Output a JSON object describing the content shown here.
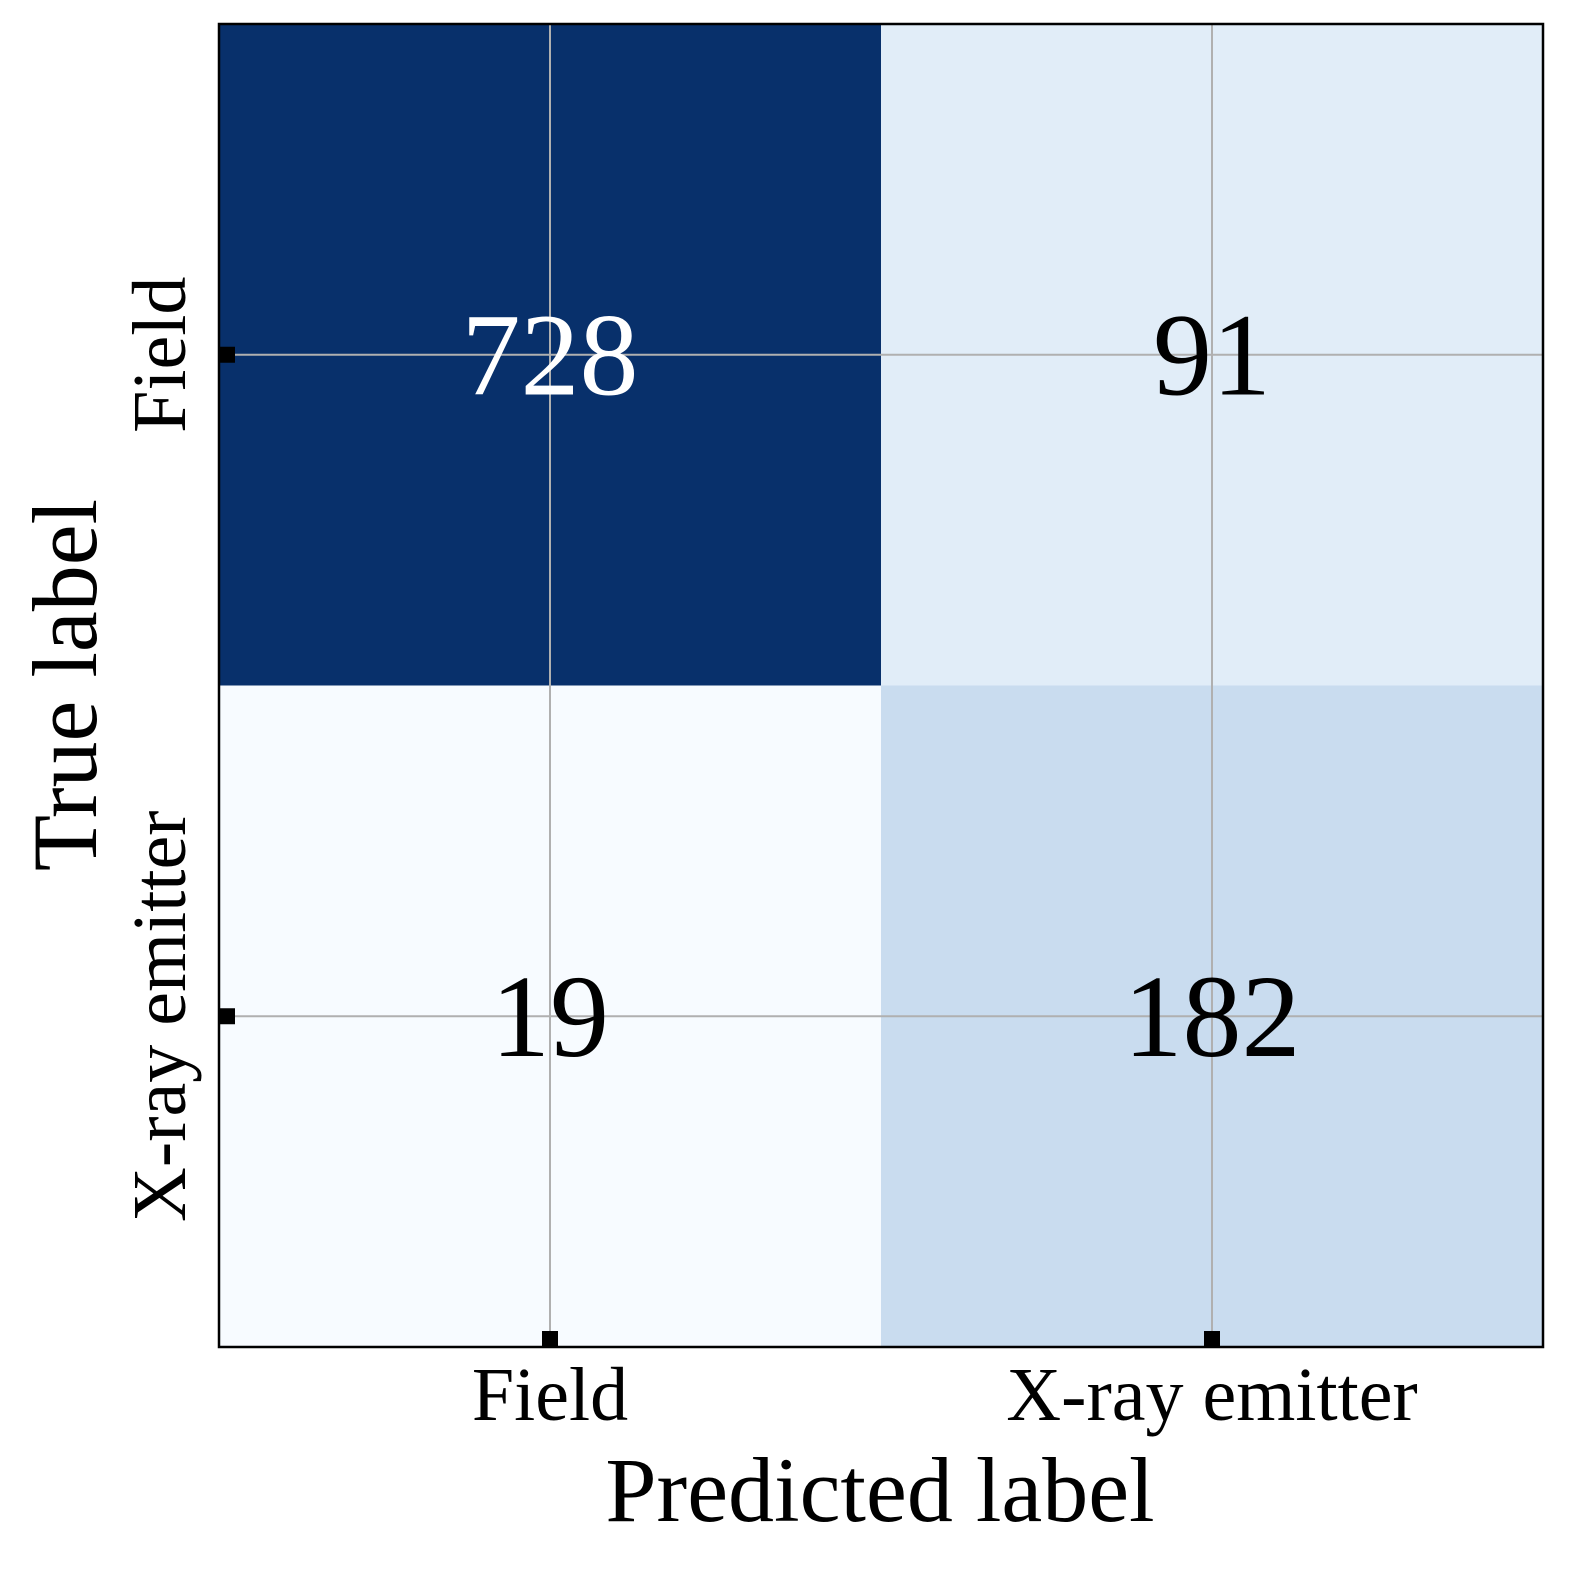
{
  "chart_data": {
    "type": "heatmap",
    "x_label": "Predicted label",
    "y_label": "True label",
    "x_categories": [
      "Field",
      "X-ray emitter"
    ],
    "y_categories": [
      "Field",
      "X-ray emitter"
    ],
    "values": [
      [
        728,
        91
      ],
      [
        19,
        182
      ]
    ],
    "colors": [
      [
        "#08306b",
        "#e1edf8"
      ],
      [
        "#f7fbff",
        "#c9dcef"
      ]
    ],
    "grid": true
  }
}
